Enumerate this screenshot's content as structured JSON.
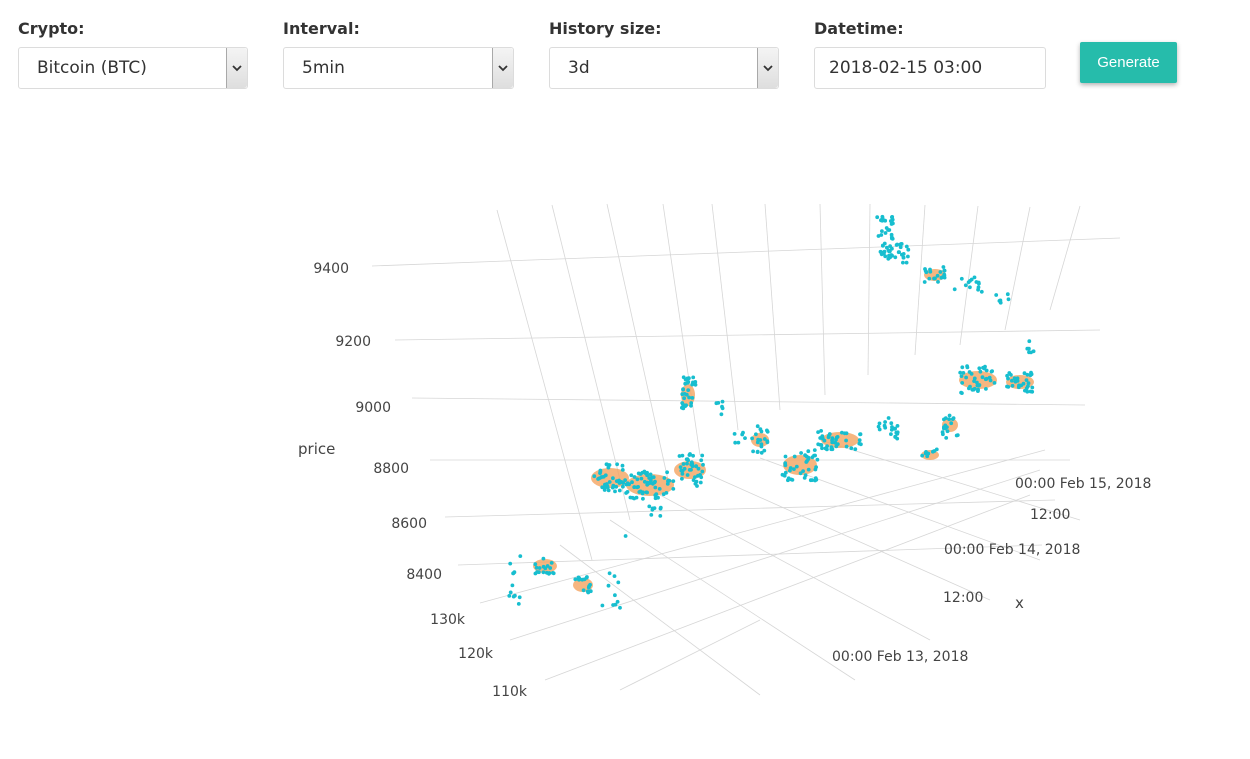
{
  "controls": {
    "crypto": {
      "label": "Crypto:",
      "value": "Bitcoin (BTC)"
    },
    "interval": {
      "label": "Interval:",
      "value": "5min"
    },
    "history": {
      "label": "History size:",
      "value": "3d"
    },
    "datetime": {
      "label": "Datetime:",
      "value": "2018-02-15 03:00"
    },
    "generate_label": "Generate"
  },
  "chart_data": {
    "type": "scatter3d",
    "axes": {
      "x": {
        "title": "x",
        "ticks": [
          "00:00 Feb 13, 2018",
          "12:00",
          "00:00 Feb 14, 2018",
          "12:00",
          "00:00 Feb 15, 2018"
        ]
      },
      "y": {
        "title": "",
        "ticks": [
          "130k",
          "120k",
          "110k"
        ]
      },
      "z": {
        "title": "price",
        "ticks": [
          "9400",
          "9200",
          "9000",
          "8800",
          "8600",
          "8400"
        ]
      }
    },
    "series": [
      {
        "mode": "markers",
        "color": "#17becf"
      },
      {
        "mode": "mesh",
        "color": "#f4a460"
      }
    ]
  }
}
